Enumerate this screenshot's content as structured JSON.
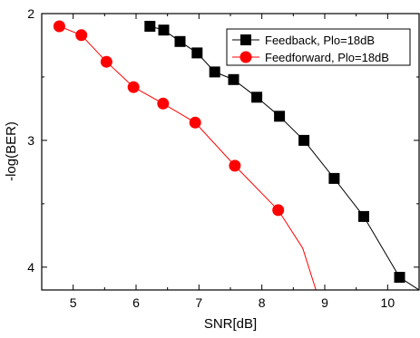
{
  "chart_data": {
    "type": "line",
    "xlabel": "SNR[dB]",
    "ylabel": "-log(BER)",
    "xlim": [
      4.5,
      10.5
    ],
    "ylim": [
      2,
      4.18
    ],
    "y_inverted": true,
    "x_ticks": [
      5,
      6,
      7,
      8,
      9,
      10
    ],
    "x_tick_labels": [
      "5",
      "6",
      "7",
      "8",
      "9",
      "10"
    ],
    "y_ticks": [
      2,
      3,
      4
    ],
    "y_tick_labels": [
      "2",
      "3",
      "4"
    ],
    "grid": false,
    "legend_position": "top-right",
    "series": [
      {
        "name": "Feedback, Plo=18dB",
        "marker": "square",
        "color": "#000000",
        "x": [
          6.22,
          6.44,
          6.7,
          6.97,
          7.25,
          7.55,
          7.92,
          8.28,
          8.67,
          9.15,
          9.62,
          10.19,
          10.5
        ],
        "y": [
          2.1,
          2.13,
          2.22,
          2.31,
          2.46,
          2.52,
          2.66,
          2.81,
          3.0,
          3.3,
          3.6,
          4.08,
          4.18
        ],
        "marker_count": 12
      },
      {
        "name": "Feedforward, Plo=18dB",
        "marker": "circle",
        "color": "#ff0000",
        "x": [
          4.78,
          5.13,
          5.53,
          5.96,
          6.43,
          6.94,
          7.57,
          8.26,
          8.65,
          8.86
        ],
        "y": [
          2.1,
          2.17,
          2.38,
          2.58,
          2.71,
          2.86,
          3.2,
          3.55,
          3.85,
          4.18
        ],
        "marker_count": 8
      }
    ]
  }
}
